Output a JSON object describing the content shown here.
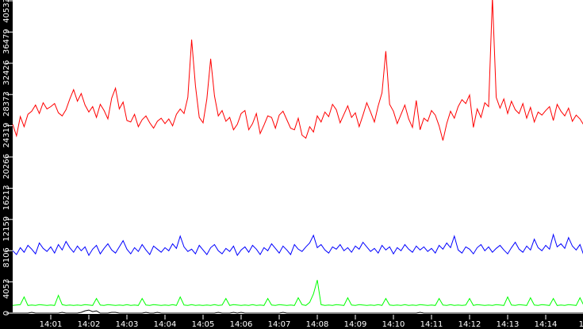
{
  "chart_data": {
    "type": "line",
    "title": "",
    "xlabel": "",
    "ylabel": "",
    "ylim": [
      0,
      40533
    ],
    "xlim": [
      "14:00",
      "14:15"
    ],
    "grid": false,
    "yticks": [
      "0",
      "4053",
      "8106",
      "12159",
      "16213",
      "20266",
      "24319",
      "28373",
      "32426",
      "36479",
      "40533"
    ],
    "xticks": [
      "14:01",
      "14:02",
      "14:03",
      "14:04",
      "14:05",
      "14:06",
      "14:07",
      "14:08",
      "14:09",
      "14:10",
      "14:11",
      "14:12",
      "14:13",
      "14:14",
      "14"
    ],
    "x_step_minutes": 0.1,
    "colors": {
      "background": "#ffffff",
      "axis": "#000000",
      "red": "#ff0000",
      "blue": "#0000ff",
      "green": "#00ff00",
      "black": "#000000"
    },
    "series": [
      {
        "color": "#ff0000",
        "values": [
          24500,
          23000,
          25500,
          24200,
          25800,
          26200,
          27000,
          25900,
          27300,
          26500,
          26800,
          27200,
          26000,
          25600,
          26400,
          27800,
          29000,
          27500,
          28500,
          27000,
          26100,
          26800,
          25400,
          27100,
          26300,
          25200,
          27900,
          29200,
          26500,
          27400,
          25000,
          24800,
          25800,
          24200,
          25100,
          25600,
          24700,
          24000,
          24900,
          25300,
          24600,
          25200,
          24300,
          25800,
          26500,
          25900,
          28000,
          35500,
          29500,
          25400,
          24700,
          27800,
          33000,
          28200,
          25600,
          26300,
          24900,
          25400,
          23800,
          24500,
          25900,
          26300,
          23800,
          24600,
          25900,
          23300,
          24400,
          25600,
          25400,
          24000,
          25700,
          26200,
          25100,
          24000,
          23800,
          25300,
          23100,
          22700,
          24200,
          23500,
          25600,
          24800,
          26100,
          25500,
          27100,
          26400,
          24700,
          25800,
          26900,
          25400,
          26000,
          24200,
          25700,
          27300,
          26100,
          24800,
          26900,
          28600,
          34000,
          27100,
          26200,
          24600,
          25800,
          27000,
          25200,
          24100,
          27600,
          23800,
          25300,
          24900,
          26300,
          25700,
          24300,
          22400,
          24600,
          26200,
          25300,
          26800,
          27700,
          27200,
          28300,
          24100,
          26500,
          25400,
          27300,
          26800,
          41000,
          28000,
          26600,
          27800,
          25900,
          27500,
          26400,
          25900,
          27200,
          25300,
          26700,
          24800,
          26100,
          25700,
          26300,
          26800,
          25000,
          27100,
          26200,
          25600,
          26600,
          24900,
          25700,
          25200,
          24400,
          16500
        ]
      },
      {
        "color": "#0000ff",
        "values": [
          8100,
          7600,
          8500,
          7900,
          8800,
          8300,
          7700,
          9100,
          8400,
          8000,
          8600,
          7800,
          8900,
          8200,
          9300,
          8500,
          7900,
          8700,
          8100,
          8600,
          7500,
          8300,
          8800,
          7700,
          8400,
          9000,
          8200,
          7800,
          8600,
          9400,
          8300,
          7700,
          8500,
          8000,
          8900,
          8200,
          7600,
          8700,
          8300,
          7900,
          8500,
          8100,
          9000,
          8400,
          10000,
          8600,
          8000,
          8300,
          7700,
          8800,
          8200,
          7600,
          8500,
          8900,
          8100,
          7700,
          8400,
          8000,
          8700,
          7500,
          8200,
          8600,
          7900,
          8800,
          8300,
          7600,
          8500,
          8100,
          9000,
          8400,
          7800,
          8700,
          8200,
          7600,
          8900,
          8300,
          8000,
          8600,
          9100,
          10100,
          8500,
          8900,
          8200,
          7800,
          8600,
          8300,
          8900,
          8100,
          8500,
          7900,
          8700,
          8300,
          9200,
          8600,
          8000,
          8400,
          7800,
          8800,
          8200,
          8600,
          7700,
          8500,
          8100,
          8900,
          8300,
          7900,
          8700,
          8200,
          8600,
          8000,
          8400,
          7800,
          8800,
          8300,
          9100,
          8500,
          10000,
          8200,
          7800,
          8600,
          8300,
          7700,
          8500,
          8900,
          8100,
          8600,
          7900,
          8400,
          8800,
          8200,
          7700,
          8500,
          9200,
          8300,
          7900,
          8700,
          8200,
          9600,
          8500,
          8100,
          8800,
          8300,
          10200,
          8600,
          9000,
          8400,
          9800,
          8700,
          8200,
          8900,
          7500
        ]
      },
      {
        "color": "#00ff00",
        "values": [
          1000,
          1050,
          1100,
          2100,
          1000,
          1050,
          1000,
          1100,
          1050,
          1000,
          1050,
          1000,
          2300,
          1100,
          1000,
          1050,
          1000,
          1050,
          1000,
          1100,
          1050,
          1000,
          1900,
          1050,
          1000,
          1100,
          1050,
          1000,
          1050,
          1000,
          1100,
          1000,
          1050,
          1000,
          1900,
          1050,
          1000,
          1100,
          1050,
          1000,
          1050,
          1000,
          1100,
          1000,
          2100,
          1050,
          1000,
          1100,
          1000,
          1050,
          1000,
          1050,
          1000,
          1100,
          1000,
          1050,
          1900,
          1000,
          1100,
          1050,
          1000,
          1050,
          1000,
          1100,
          1000,
          1050,
          1000,
          1900,
          1050,
          1000,
          1100,
          1050,
          1000,
          1050,
          1000,
          2000,
          1100,
          1000,
          1400,
          2500,
          4300,
          1100,
          1000,
          1050,
          1000,
          1100,
          1050,
          1000,
          2000,
          1050,
          1000,
          1100,
          1050,
          1000,
          1050,
          1000,
          1100,
          1000,
          1900,
          1050,
          1000,
          1050,
          1000,
          1100,
          1000,
          1050,
          1000,
          1100,
          1050,
          1000,
          1050,
          1000,
          1900,
          1050,
          1000,
          1100,
          1000,
          1050,
          1000,
          1050,
          1900,
          1000,
          1100,
          1050,
          1000,
          1050,
          1000,
          1100,
          1050,
          1000,
          2100,
          1050,
          1000,
          1100,
          1050,
          1000,
          2000,
          1050,
          1000,
          1100,
          1050,
          1000,
          1900,
          1000,
          1050,
          1000,
          1100,
          1050,
          1000,
          2000,
          1000
        ]
      },
      {
        "color": "#000000",
        "values": [
          0,
          0,
          0,
          0,
          0,
          100,
          0,
          0,
          0,
          0,
          0,
          0,
          0,
          100,
          0,
          0,
          0,
          0,
          100,
          300,
          400,
          200,
          300,
          0,
          0,
          0,
          100,
          100,
          0,
          0,
          0,
          0,
          0,
          0,
          0,
          100,
          0,
          0,
          100,
          0,
          0,
          0,
          0,
          0,
          0,
          0,
          0,
          0,
          0,
          0,
          0,
          0,
          0,
          0,
          100,
          0,
          0,
          0,
          100,
          0,
          100,
          0,
          0,
          0,
          0,
          0,
          0,
          0,
          0,
          0,
          0,
          100,
          0,
          0,
          0,
          0,
          0,
          0,
          0,
          0,
          0,
          0,
          0,
          0,
          0,
          0,
          0,
          0,
          0,
          0,
          0,
          0,
          0,
          0,
          0,
          0,
          0,
          0,
          0,
          0,
          0,
          0,
          0,
          0,
          0,
          0,
          0,
          100,
          0,
          0,
          0,
          0,
          0,
          0,
          0,
          0,
          0,
          0,
          0,
          0,
          0,
          0,
          0,
          0,
          0,
          0,
          0,
          0,
          0,
          0,
          0,
          0,
          0,
          0,
          0,
          0,
          0,
          0,
          0,
          0,
          0,
          0,
          0,
          0,
          0,
          0,
          0,
          0,
          0,
          0,
          0
        ]
      }
    ]
  }
}
